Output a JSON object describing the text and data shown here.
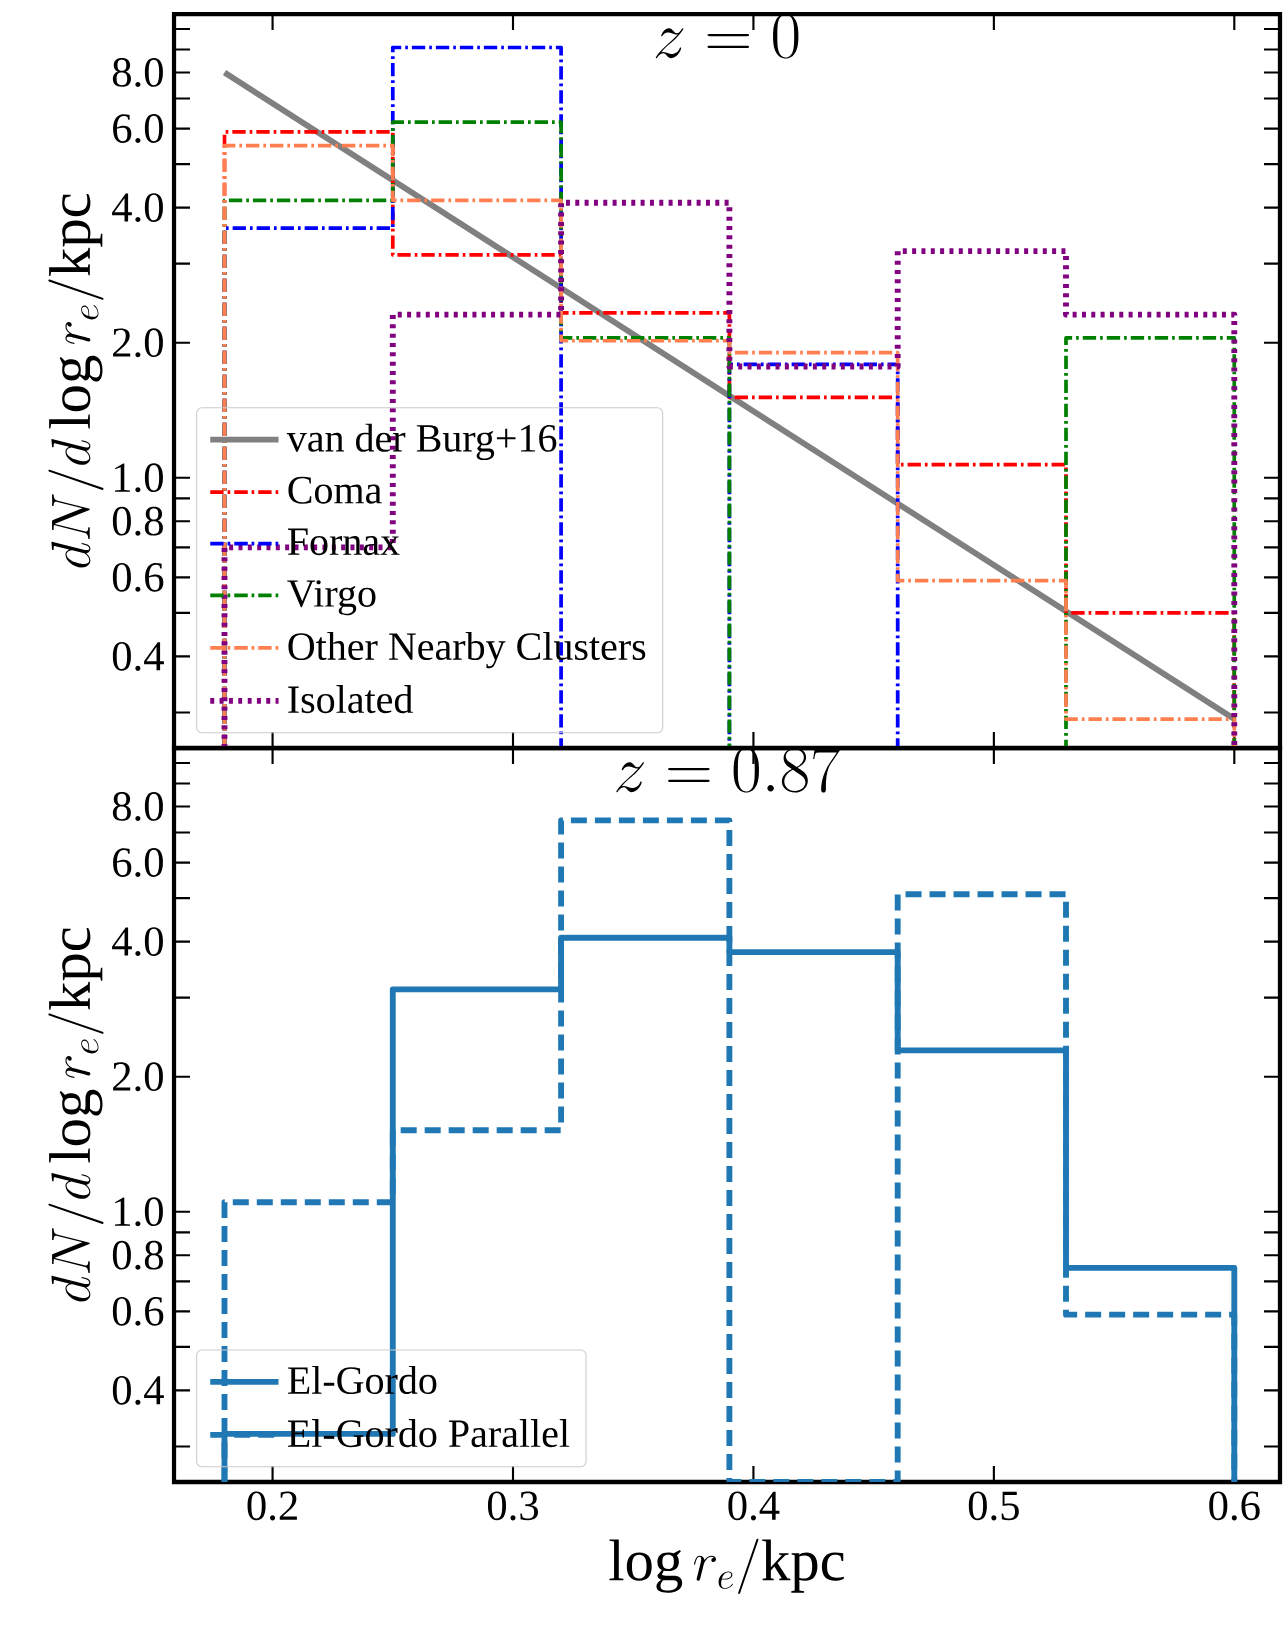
{
  "chart_data": [
    {
      "type": "histogram",
      "title": "z=0",
      "ylabel": "dN/d\\log r_e/\\mathrm{kpc}",
      "bins": [
        0.18,
        0.25,
        0.32,
        0.39,
        0.46,
        0.53,
        0.6
      ],
      "log": "y",
      "legend": "bottom left",
      "tick_labels": "y",
      "xlim": [
        0.159,
        0.619
      ],
      "ylim": [
        0.25,
        10.8
      ],
      "xticks": [
        0.2,
        0.3,
        0.4,
        0.5,
        0.6
      ],
      "yticks": [
        {
          "value": 0.3,
          "label": null
        },
        {
          "value": 0.4,
          "label": "0.4"
        },
        {
          "value": 0.5,
          "label": null
        },
        {
          "value": 0.6,
          "label": "0.6"
        },
        {
          "value": 0.7,
          "label": null
        },
        {
          "value": 0.8,
          "label": "0.8"
        },
        {
          "value": 0.9,
          "label": null
        },
        {
          "value": 1,
          "label": "1.0"
        },
        {
          "value": 2,
          "label": "2.0"
        },
        {
          "value": 3,
          "label": null
        },
        {
          "value": 4,
          "label": "4.0"
        },
        {
          "value": 5,
          "label": null
        },
        {
          "value": 6,
          "label": "6.0"
        },
        {
          "value": 7,
          "label": null
        },
        {
          "value": 8,
          "label": "8.0"
        },
        {
          "value": 9,
          "label": null
        },
        {
          "value": 10,
          "label": null
        }
      ],
      "series": [
        {
          "name": "van der Burg+16",
          "type": "line",
          "color": "#808080",
          "line_style": "solid",
          "x": [
            0.18,
            0.6
          ],
          "values": [
            8.0,
            0.29
          ]
        },
        {
          "name": "Coma",
          "color": "#ff0000",
          "line_style": "dashdot",
          "values": [
            5.9,
            3.14,
            2.33,
            1.51,
            1.07,
            0.5
          ]
        },
        {
          "name": "Fornax",
          "color": "#0000ff",
          "line_style": "dashdot",
          "values": [
            3.6,
            9.1,
            null,
            1.79,
            null,
            null
          ]
        },
        {
          "name": "Virgo",
          "color": "#008000",
          "line_style": "dashdot",
          "values": [
            4.15,
            6.2,
            2.05,
            null,
            null,
            2.05
          ]
        },
        {
          "name": "Other Nearby Clusters",
          "color": "#ff7f50",
          "line_style": "dashdot",
          "values": [
            5.5,
            4.15,
            2.02,
            1.9,
            0.59,
            0.29
          ]
        },
        {
          "name": "Isolated",
          "color": "#800080",
          "line_style": "dotted",
          "values": [
            0.7,
            2.31,
            4.1,
            1.77,
            3.2,
            2.31
          ]
        }
      ]
    },
    {
      "type": "histogram",
      "title": "z=0.87",
      "xlabel": "\\log r_e/\\mathrm{kpc}",
      "ylabel": "dN/d\\log r_e/\\mathrm{kpc}",
      "bins": [
        0.18,
        0.25,
        0.32,
        0.39,
        0.46,
        0.53,
        0.6
      ],
      "log": "y",
      "legend": "bottom left",
      "xlim": [
        0.159,
        0.619
      ],
      "ylim": [
        0.25,
        10.8
      ],
      "xticks": [
        0.2,
        0.3,
        0.4,
        0.5,
        0.6
      ],
      "yticks": [
        {
          "value": 0.3,
          "label": null
        },
        {
          "value": 0.4,
          "label": "0.4"
        },
        {
          "value": 0.5,
          "label": null
        },
        {
          "value": 0.6,
          "label": "0.6"
        },
        {
          "value": 0.7,
          "label": null
        },
        {
          "value": 0.8,
          "label": "0.8"
        },
        {
          "value": 0.9,
          "label": null
        },
        {
          "value": 1,
          "label": "1.0"
        },
        {
          "value": 2,
          "label": "2.0"
        },
        {
          "value": 3,
          "label": null
        },
        {
          "value": 4,
          "label": "4.0"
        },
        {
          "value": 5,
          "label": null
        },
        {
          "value": 6,
          "label": "6.0"
        },
        {
          "value": 7,
          "label": null
        },
        {
          "value": 8,
          "label": "8.0"
        },
        {
          "value": 9,
          "label": null
        },
        {
          "value": 10,
          "label": null
        }
      ],
      "series": [
        {
          "name": "El-Gordo",
          "color": "#1f77b4",
          "line_style": "solid",
          "values": [
            0.32,
            3.13,
            4.08,
            3.79,
            2.29,
            0.75
          ]
        },
        {
          "name": "El-Gordo Parallel",
          "color": "#1f78b4",
          "line_style": "dashed",
          "values": [
            1.05,
            1.52,
            7.45,
            null,
            5.1,
            0.59
          ]
        }
      ]
    }
  ]
}
